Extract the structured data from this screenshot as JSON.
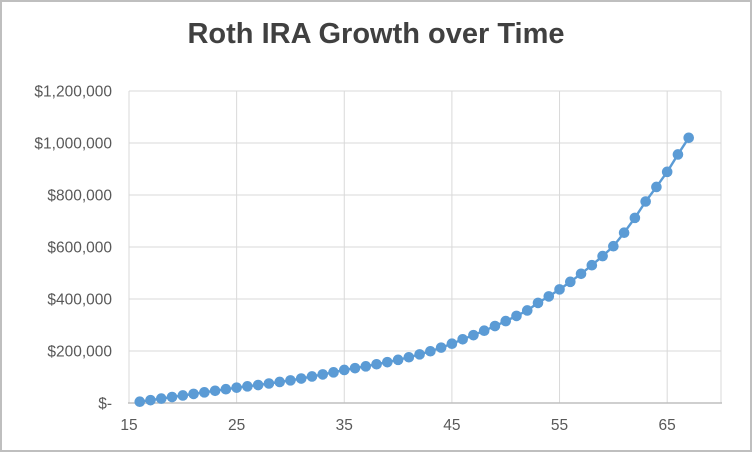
{
  "chart_data": {
    "type": "scatter",
    "title": "Roth IRA Growth over Time",
    "marker_style": "filled-circle-connected-line",
    "legend": "none",
    "grid": true,
    "xlim": [
      15,
      70
    ],
    "ylim": [
      0,
      1200000
    ],
    "x_gridline_values": [
      15,
      25,
      35,
      45,
      55,
      65,
      70
    ],
    "x_ticks": [
      {
        "value": 15,
        "label": "15"
      },
      {
        "value": 25,
        "label": "25"
      },
      {
        "value": 35,
        "label": "35"
      },
      {
        "value": 45,
        "label": "45"
      },
      {
        "value": 55,
        "label": "55"
      },
      {
        "value": 65,
        "label": "65"
      }
    ],
    "y_ticks": [
      {
        "value": 0,
        "label": "$-"
      },
      {
        "value": 200000,
        "label": "$200,000"
      },
      {
        "value": 400000,
        "label": "$400,000"
      },
      {
        "value": 600000,
        "label": "$600,000"
      },
      {
        "value": 800000,
        "label": "$800,000"
      },
      {
        "value": 1000000,
        "label": "$1,000,000"
      },
      {
        "value": 1200000,
        "label": "$1,200,000"
      }
    ],
    "x": [
      16,
      17,
      18,
      19,
      20,
      21,
      22,
      23,
      24,
      25,
      26,
      27,
      28,
      29,
      30,
      31,
      32,
      33,
      34,
      35,
      36,
      37,
      38,
      39,
      40,
      41,
      42,
      43,
      44,
      45,
      46,
      47,
      48,
      49,
      50,
      51,
      52,
      53,
      54,
      55,
      56,
      57,
      58,
      59,
      60,
      61,
      62,
      63,
      64,
      65,
      66,
      67
    ],
    "y": [
      5000,
      11000,
      17000,
      23000,
      29000,
      35000,
      41000,
      47000,
      53000,
      59000,
      64000,
      69000,
      75000,
      81000,
      87000,
      94000,
      102000,
      110000,
      118000,
      127000,
      134000,
      141000,
      149000,
      157000,
      166000,
      176000,
      187000,
      199000,
      213000,
      228000,
      245000,
      261000,
      278000,
      296000,
      315000,
      335000,
      356000,
      385000,
      410000,
      437000,
      466000,
      497000,
      530000,
      565000,
      603000,
      655000,
      712000,
      775000,
      831000,
      889000,
      956000,
      1020000
    ],
    "colors": {
      "marker": "#5b9bd5",
      "series_line": "#5b9bd5",
      "gridline": "#d9d9d9",
      "axis_line": "#bfbfbf",
      "title_text": "#404040",
      "tick_text": "#595959",
      "chart_border": "#bfbfbf",
      "background": "#ffffff"
    }
  }
}
